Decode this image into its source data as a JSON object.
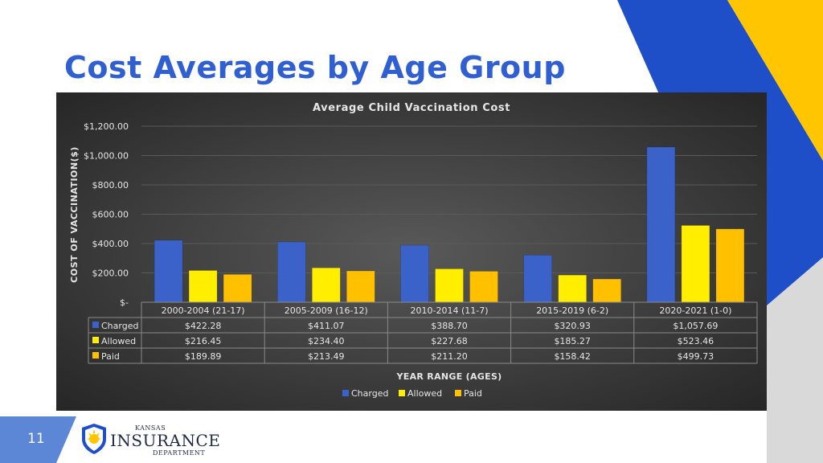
{
  "slide": {
    "title": "Cost Averages by Age Group",
    "number": "11"
  },
  "logo": {
    "line1": "KANSAS",
    "line2": "INSURANCE",
    "line3": "DEPARTMENT"
  },
  "colors": {
    "title_blue": "#2f5fd0",
    "deco_blue": "#1f4fc8",
    "deco_yellow": "#ffc600",
    "deco_grey": "#d9d9d9",
    "slide_num_blue": "#5b87d6"
  },
  "chart_data": {
    "type": "bar",
    "title": "Average Child Vaccination Cost",
    "ylabel": "COST OF VACCINATION($)",
    "xlabel": "YEAR RANGE (AGES)",
    "ylim": [
      0,
      1200
    ],
    "yticks": [
      0,
      200,
      400,
      600,
      800,
      1000,
      1200
    ],
    "ytick_labels": [
      "$-",
      "$200.00",
      "$400.00",
      "$600.00",
      "$800.00",
      "$1,000.00",
      "$1,200.00"
    ],
    "grid": true,
    "legend_position": "bottom",
    "categories": [
      "2000-2004 (21-17)",
      "2005-2009 (16-12)",
      "2010-2014 (11-7)",
      "2015-2019 (6-2)",
      "2020-2021 (1-0)"
    ],
    "series": [
      {
        "name": "Charged",
        "color": "#3a62c9",
        "values": [
          422.28,
          411.07,
          388.7,
          320.93,
          1057.69
        ],
        "labels": [
          "$422.28",
          "$411.07",
          "$388.70",
          "$320.93",
          "$1,057.69"
        ]
      },
      {
        "name": "Allowed",
        "color": "#ffee00",
        "values": [
          216.45,
          234.4,
          227.68,
          185.27,
          523.46
        ],
        "labels": [
          "$216.45",
          "$234.40",
          "$227.68",
          "$185.27",
          "$523.46"
        ]
      },
      {
        "name": "Paid",
        "color": "#ffc000",
        "values": [
          189.89,
          213.49,
          211.2,
          158.42,
          499.73
        ],
        "labels": [
          "$189.89",
          "$213.49",
          "$211.20",
          "$158.42",
          "$499.73"
        ]
      }
    ]
  }
}
